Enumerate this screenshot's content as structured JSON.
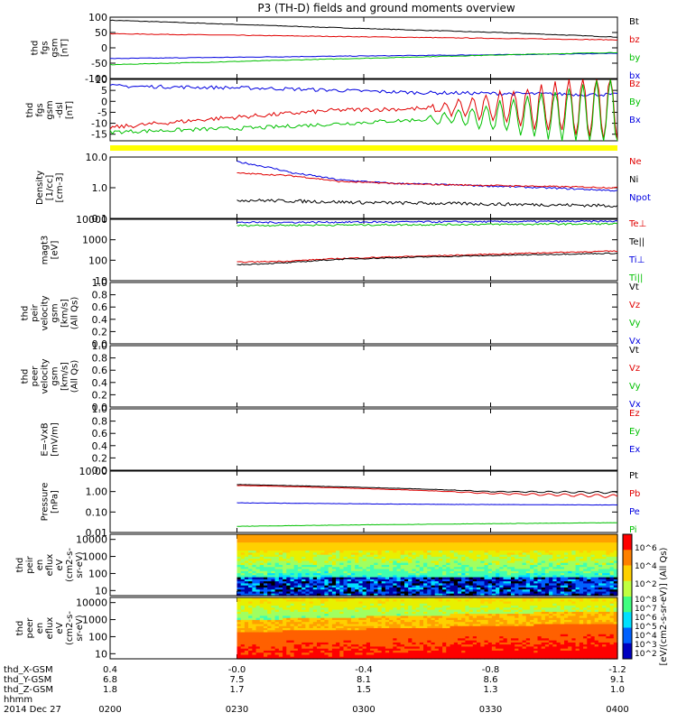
{
  "chart_data": {
    "type": "line",
    "title": "P3 (TH-D) fields and ground moments overview",
    "x": {
      "label": "hhmm",
      "ticks": [
        "0200",
        "0230",
        "0300",
        "0330",
        "0400"
      ],
      "date": "2014 Dec 27",
      "orbit_rows": [
        {
          "label": "thd_X-GSM",
          "values": [
            "0.4",
            "-0.0",
            "-0.4",
            "-0.8",
            "-1.2"
          ]
        },
        {
          "label": "thd_Y-GSM",
          "values": [
            "6.8",
            "7.5",
            "8.1",
            "8.6",
            "9.1"
          ]
        },
        {
          "label": "thd_Z-GSM",
          "values": [
            "1.8",
            "1.7",
            "1.5",
            "1.3",
            "1.0"
          ]
        }
      ]
    },
    "panels": [
      {
        "id": "fgs",
        "ylabel": [
          "thd",
          "fgs",
          "gsm",
          "[nT]"
        ],
        "scale": "linear",
        "ylim": [
          -100,
          100
        ],
        "yticks": [
          "100",
          "50",
          "0",
          "-50",
          "-100"
        ],
        "legend": [
          {
            "text": "Bt",
            "color": "#000000"
          },
          {
            "text": "bz",
            "color": "#e00000"
          },
          {
            "text": "by",
            "color": "#00c000"
          },
          {
            "text": "bx",
            "color": "#0000e0"
          }
        ],
        "series": [
          {
            "color": "#000000",
            "key": [
              [
                0,
                90
              ],
              [
                40,
                68
              ],
              [
                80,
                48
              ],
              [
                100,
                35
              ]
            ],
            "noise": 1,
            "wave": [
              0,
              0
            ]
          },
          {
            "color": "#e00000",
            "key": [
              [
                0,
                46
              ],
              [
                40,
                38
              ],
              [
                80,
                30
              ],
              [
                100,
                26
              ]
            ],
            "noise": 1,
            "wave": [
              0,
              0
            ]
          },
          {
            "color": "#0000e0",
            "key": [
              [
                0,
                -35
              ],
              [
                40,
                -28
              ],
              [
                80,
                -22
              ],
              [
                100,
                -18
              ]
            ],
            "noise": 1,
            "wave": [
              0,
              0
            ]
          },
          {
            "color": "#00c000",
            "key": [
              [
                0,
                -55
              ],
              [
                40,
                -38
              ],
              [
                80,
                -22
              ],
              [
                100,
                -15
              ]
            ],
            "noise": 1,
            "wave": [
              0,
              0
            ]
          }
        ]
      },
      {
        "id": "fgs-dsl",
        "ylabel": [
          "thd",
          "fgs",
          "gsm",
          "-dsl",
          "[nT]"
        ],
        "scale": "linear",
        "ylim": [
          -18,
          10
        ],
        "yticks": [
          "10",
          "5",
          "0",
          "-5",
          "-10",
          "-15"
        ],
        "legend": [
          {
            "text": "Bz",
            "color": "#e00000"
          },
          {
            "text": "By",
            "color": "#00c000"
          },
          {
            "text": "Bx",
            "color": "#0000e0"
          }
        ],
        "series": [
          {
            "color": "#0000e0",
            "key": [
              [
                0,
                7
              ],
              [
                30,
                6
              ],
              [
                60,
                4
              ],
              [
                100,
                3
              ]
            ],
            "noise": 0.8,
            "wave": [
              0,
              0
            ]
          },
          {
            "color": "#e00000",
            "key": [
              [
                0,
                -12
              ],
              [
                20,
                -8
              ],
              [
                45,
                -4
              ],
              [
                70,
                -3
              ],
              [
                100,
                -2
              ]
            ],
            "noise": 1,
            "wave": [
              4,
              7
            ]
          },
          {
            "color": "#00c000",
            "key": [
              [
                0,
                -14
              ],
              [
                30,
                -12
              ],
              [
                55,
                -9
              ],
              [
                75,
                -7
              ],
              [
                100,
                -5
              ]
            ],
            "noise": 0.9,
            "wave": [
              4,
              7
            ]
          }
        ]
      },
      {
        "id": "density",
        "ylabel": [
          "Density",
          "[1/cc]",
          "[cm-3]"
        ],
        "scale": "log",
        "ylim": [
          0.1,
          10
        ],
        "yticks": [
          "10.0",
          "1.0",
          "0.1"
        ],
        "legend": [
          {
            "text": "Ne",
            "color": "#e00000"
          },
          {
            "text": "Ni",
            "color": "#000000"
          },
          {
            "text": "Npot",
            "color": "#0000e0"
          }
        ],
        "series": [
          {
            "color": "#0000e0",
            "key": [
              [
                25,
                7
              ],
              [
                30,
                5
              ],
              [
                36,
                3
              ],
              [
                45,
                1.8
              ],
              [
                55,
                1.4
              ],
              [
                100,
                0.8
              ]
            ],
            "noise": 0.06,
            "wave": [
              0,
              0
            ],
            "start": 25
          },
          {
            "color": "#e00000",
            "key": [
              [
                25,
                3
              ],
              [
                35,
                2.5
              ],
              [
                45,
                1.6
              ],
              [
                60,
                1.3
              ],
              [
                100,
                1.0
              ]
            ],
            "noise": 0.05,
            "wave": [
              0,
              0
            ],
            "start": 25
          },
          {
            "color": "#000000",
            "key": [
              [
                25,
                0.4
              ],
              [
                50,
                0.33
              ],
              [
                100,
                0.26
              ]
            ],
            "noise": 0.12,
            "wave": [
              0,
              0
            ],
            "start": 25
          }
        ]
      },
      {
        "id": "temperature",
        "ylabel": [
          "magt3",
          "[eV]"
        ],
        "scale": "log",
        "ylim": [
          10,
          10000
        ],
        "yticks": [
          "10000",
          "1000",
          "100",
          "10"
        ],
        "legend": [
          {
            "text": "Te⊥",
            "color": "#e00000"
          },
          {
            "text": "Te||",
            "color": "#000000"
          },
          {
            "text": "Ti⊥",
            "color": "#0000e0"
          },
          {
            "text": "Ti||",
            "color": "#00c000"
          }
        ],
        "series": [
          {
            "color": "#0000e0",
            "key": [
              [
                25,
                7000
              ],
              [
                100,
                8000
              ]
            ],
            "noise": 0.1,
            "wave": [
              0,
              0
            ],
            "start": 25
          },
          {
            "color": "#00c000",
            "key": [
              [
                25,
                5000
              ],
              [
                100,
                6000
              ]
            ],
            "noise": 0.1,
            "wave": [
              0,
              0
            ],
            "start": 25
          },
          {
            "color": "#e00000",
            "key": [
              [
                25,
                80
              ],
              [
                35,
                90
              ],
              [
                45,
                120
              ],
              [
                70,
                180
              ],
              [
                100,
                280
              ]
            ],
            "noise": 0.06,
            "wave": [
              0,
              0
            ],
            "start": 25
          },
          {
            "color": "#000000",
            "key": [
              [
                25,
                60
              ],
              [
                35,
                75
              ],
              [
                45,
                110
              ],
              [
                70,
                160
              ],
              [
                100,
                220
              ]
            ],
            "noise": 0.06,
            "wave": [
              0,
              0
            ],
            "start": 25
          }
        ]
      },
      {
        "id": "peir-velocity",
        "ylabel": [
          "thd",
          "peir",
          "velocity",
          "gsm",
          "[km/s]",
          "(All Qs)"
        ],
        "scale": "linear",
        "ylim": [
          0,
          1
        ],
        "yticks": [
          "1.0",
          "0.8",
          "0.6",
          "0.4",
          "0.2",
          "0.0"
        ],
        "legend": [
          {
            "text": "Vt",
            "color": "#000000"
          },
          {
            "text": "Vz",
            "color": "#e00000"
          },
          {
            "text": "Vy",
            "color": "#00c000"
          },
          {
            "text": "Vx",
            "color": "#0000e0"
          }
        ],
        "series": []
      },
      {
        "id": "peer-velocity",
        "ylabel": [
          "thd",
          "peer",
          "velocity",
          "gsm",
          "[km/s]",
          "(All Qs)"
        ],
        "scale": "linear",
        "ylim": [
          0,
          1
        ],
        "yticks": [
          "1.0",
          "0.8",
          "0.6",
          "0.4",
          "0.2",
          "0.0"
        ],
        "legend": [
          {
            "text": "Vt",
            "color": "#000000"
          },
          {
            "text": "Vz",
            "color": "#e00000"
          },
          {
            "text": "Vy",
            "color": "#00c000"
          },
          {
            "text": "Vx",
            "color": "#0000e0"
          }
        ],
        "series": []
      },
      {
        "id": "efield",
        "ylabel": [
          "E=-VxB",
          "[mV/m]"
        ],
        "scale": "linear",
        "ylim": [
          0,
          1
        ],
        "yticks": [
          "1.0",
          "0.8",
          "0.6",
          "0.4",
          "0.2",
          "0.0"
        ],
        "legend": [
          {
            "text": "Ez",
            "color": "#e00000"
          },
          {
            "text": "Ey",
            "color": "#00c000"
          },
          {
            "text": "Ex",
            "color": "#0000e0"
          }
        ],
        "series": []
      },
      {
        "id": "pressure",
        "ylabel": [
          "Pressure",
          "[nPa]"
        ],
        "scale": "log",
        "ylim": [
          0.01,
          10
        ],
        "yticks": [
          "10.00",
          "1.00",
          "0.10",
          "0.01"
        ],
        "legend": [
          {
            "text": "Pt",
            "color": "#000000"
          },
          {
            "text": "Pb",
            "color": "#e00000"
          },
          {
            "text": "Pe",
            "color": "#0000e0"
          },
          {
            "text": "Pi",
            "color": "#00c000"
          }
        ],
        "series": [
          {
            "color": "#000000",
            "key": [
              [
                25,
                2.2
              ],
              [
                50,
                1.6
              ],
              [
                75,
                1.0
              ],
              [
                100,
                0.9
              ]
            ],
            "noise": 0.02,
            "wave": [
              0.1,
              6
            ],
            "start": 25
          },
          {
            "color": "#e00000",
            "key": [
              [
                25,
                2.0
              ],
              [
                50,
                1.4
              ],
              [
                75,
                0.8
              ],
              [
                100,
                0.6
              ]
            ],
            "noise": 0.02,
            "wave": [
              0.15,
              6
            ],
            "start": 25
          },
          {
            "color": "#0000e0",
            "key": [
              [
                25,
                0.28
              ],
              [
                60,
                0.24
              ],
              [
                100,
                0.22
              ]
            ],
            "noise": 0.02,
            "wave": [
              0,
              0
            ],
            "start": 25
          },
          {
            "color": "#00c000",
            "key": [
              [
                25,
                0.02
              ],
              [
                60,
                0.025
              ],
              [
                100,
                0.03
              ]
            ],
            "noise": 0.02,
            "wave": [
              0,
              0
            ],
            "start": 25
          }
        ]
      },
      {
        "id": "peir-spec",
        "type": "heatmap",
        "ylabel": [
          "thd",
          "peir",
          "en",
          "eflux",
          "eV",
          "(cm2-s-",
          "sr-eV)"
        ],
        "scale": "log",
        "ylim": [
          5,
          20000
        ],
        "yticks": [
          "10000",
          "1000",
          "100",
          "10"
        ],
        "start": 25
      },
      {
        "id": "peer-spec",
        "type": "heatmap",
        "ylabel": [
          "thd",
          "peer",
          "en",
          "eflux",
          "eV",
          "(cm2-s-",
          "sr-eV)"
        ],
        "scale": "log",
        "ylim": [
          5,
          20000
        ],
        "yticks": [
          "10000",
          "1000",
          "100",
          "10"
        ],
        "start": 25
      }
    ],
    "colorbar": {
      "label": "[eV/(cm2-s-sr-eV)] (All Qs)",
      "ticks_peir": [
        "10^6",
        "10^4",
        "10^2"
      ],
      "ticks_peer": [
        "10^8",
        "10^7",
        "10^6",
        "10^5",
        "10^4",
        "10^3",
        "10^2"
      ]
    }
  }
}
